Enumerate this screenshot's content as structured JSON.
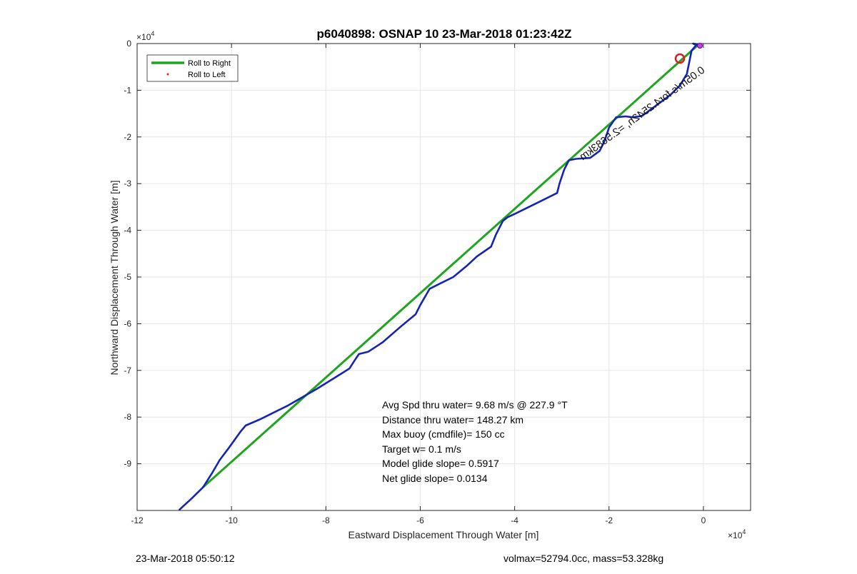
{
  "chart_data": {
    "type": "line",
    "title": "p6040898: OSNAP 10 23-Mar-2018 01:23:42Z",
    "xlabel": "Eastward Displacement Through Water [m]",
    "ylabel": "Northward Displacement Through Water [m]",
    "xlim": [
      -120000,
      10000
    ],
    "ylim": [
      -100000,
      0
    ],
    "x_ticks": [
      -120000,
      -100000,
      -80000,
      -60000,
      -40000,
      -20000,
      0
    ],
    "y_ticks": [
      0,
      -10000,
      -20000,
      -30000,
      -40000,
      -50000,
      -60000,
      -70000,
      -80000,
      -90000
    ],
    "x_tick_labels": [
      "-12",
      "-10",
      "-8",
      "-6",
      "-4",
      "-2",
      "0"
    ],
    "y_tick_labels": [
      "0",
      "-1",
      "-2",
      "-3",
      "-4",
      "-5",
      "-6",
      "-7",
      "-8",
      "-9"
    ],
    "x_exponent": "10",
    "x_exponent_power": "4",
    "y_exponent": "10",
    "y_exponent_power": "4",
    "grid": true,
    "legend_position": "top-left",
    "legend": [
      "Roll to Right",
      "Roll to Left"
    ],
    "series": [
      {
        "name": "Roll to Right",
        "color": "#1fa51f",
        "points": [
          [
            -1000,
            -200
          ],
          [
            -106000,
            -95000
          ]
        ]
      },
      {
        "name": "Roll to Left",
        "color": "#e41a1c",
        "points": []
      },
      {
        "color": "#1424b4",
        "points": [
          [
            -111000,
            -99800
          ],
          [
            -108500,
            -97500
          ],
          [
            -106000,
            -95000
          ],
          [
            -104000,
            -91800
          ],
          [
            -102500,
            -89200
          ],
          [
            -100500,
            -86500
          ],
          [
            -98000,
            -83000
          ],
          [
            -97000,
            -81800
          ],
          [
            -94000,
            -80500
          ],
          [
            -88000,
            -77500
          ],
          [
            -82000,
            -74000
          ],
          [
            -78000,
            -71500
          ],
          [
            -75000,
            -69600
          ],
          [
            -74000,
            -68000
          ],
          [
            -73000,
            -66500
          ],
          [
            -71000,
            -66000
          ],
          [
            -68000,
            -64000
          ],
          [
            -64000,
            -60500
          ],
          [
            -61000,
            -58000
          ],
          [
            -60000,
            -56000
          ],
          [
            -58000,
            -52500
          ],
          [
            -56000,
            -51500
          ],
          [
            -53000,
            -50000
          ],
          [
            -50000,
            -47500
          ],
          [
            -48000,
            -45600
          ],
          [
            -45000,
            -43500
          ],
          [
            -44000,
            -41000
          ],
          [
            -42500,
            -38000
          ],
          [
            -41500,
            -37200
          ],
          [
            -40000,
            -36500
          ],
          [
            -35000,
            -34000
          ],
          [
            -31000,
            -32000
          ],
          [
            -30500,
            -30000
          ],
          [
            -29500,
            -27000
          ],
          [
            -28500,
            -25000
          ],
          [
            -27000,
            -24700
          ],
          [
            -24000,
            -24500
          ],
          [
            -22000,
            -23000
          ],
          [
            -21000,
            -21000
          ],
          [
            -20000,
            -18000
          ],
          [
            -18500,
            -15800
          ],
          [
            -16500,
            -15600
          ],
          [
            -15000,
            -15800
          ],
          [
            -13000,
            -15500
          ],
          [
            -11000,
            -14000
          ],
          [
            -9000,
            -12500
          ],
          [
            -7000,
            -11000
          ],
          [
            -5000,
            -9000
          ],
          [
            -3500,
            -6500
          ],
          [
            -3000,
            -4000
          ],
          [
            -2500,
            -1500
          ],
          [
            -1500,
            -300
          ],
          [
            -2200,
            0
          ],
          [
            -1000,
            -200
          ]
        ]
      }
    ],
    "annotation": "0.05m/s for4.2542h, =2.5683km",
    "stats": [
      "Avg Spd thru water=  9.68 m/s @ 227.9 °T",
      "Distance thru water= 148.27 km",
      "Max buoy (cmdfile)= 150 cc",
      "Target w= 0.1 m/s",
      "Model glide slope= 0.5917",
      "Net glide slope= 0.0134"
    ]
  },
  "footer": {
    "left": "23-Mar-2018 05:50:12",
    "right": "volmax=52794.0cc, mass=53.328kg"
  }
}
